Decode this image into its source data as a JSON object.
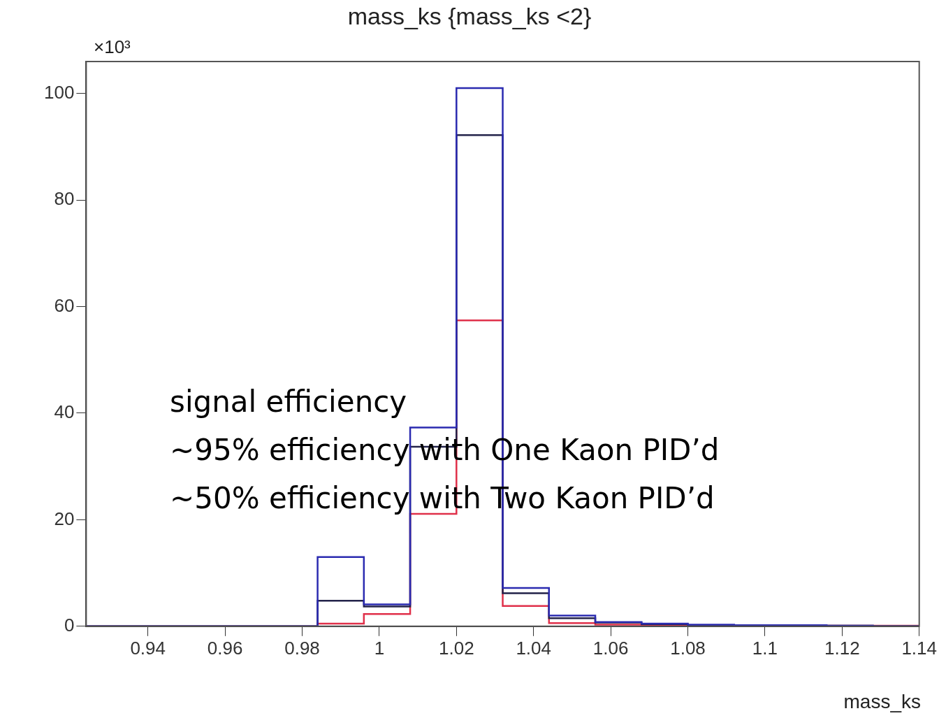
{
  "chart_data": {
    "type": "histogram",
    "title": "mass_ks {mass_ks <2}",
    "xlabel": "mass_ks",
    "ylabel": "×10³",
    "bins": [
      0.924,
      0.936,
      0.948,
      0.96,
      0.972,
      0.984,
      0.996,
      1.008,
      1.02,
      1.032,
      1.044,
      1.056,
      1.068,
      1.08,
      1.092,
      1.104,
      1.116,
      1.128,
      1.14
    ],
    "series": [
      {
        "color": "#2a2ab0",
        "values": [
          0,
          0,
          0,
          0,
          0,
          13.0,
          4.1,
          37.3,
          101,
          7.2,
          2.0,
          0.8,
          0.5,
          0.3,
          0.2,
          0.2,
          0.1,
          0
        ]
      },
      {
        "color": "#23234a",
        "values": [
          0,
          0,
          0,
          0,
          0,
          4.8,
          3.7,
          33.7,
          92.2,
          6.2,
          1.5,
          0.7,
          0.4,
          0.2,
          0.2,
          0.1,
          0.1,
          0
        ]
      },
      {
        "color": "#e0304a",
        "values": [
          0,
          0,
          0,
          0,
          0,
          0.5,
          2.3,
          21.1,
          57.4,
          3.8,
          0.6,
          0.3,
          0.2,
          0.1,
          0.1,
          0.1,
          0.1,
          0.1
        ]
      }
    ],
    "xlim": [
      0.924,
      1.14
    ],
    "xticks": [
      0.94,
      0.96,
      0.98,
      1,
      1.02,
      1.04,
      1.06,
      1.08,
      1.1,
      1.12,
      1.14
    ],
    "ylim": [
      0,
      106
    ],
    "yticks": [
      0,
      20,
      40,
      60,
      80,
      100
    ],
    "grid": false,
    "legend": false,
    "annotations": [
      "signal efficiency",
      "~95% efficiency with One Kaon PID’d",
      "~50% efficiency with Two Kaon PID’d"
    ]
  }
}
